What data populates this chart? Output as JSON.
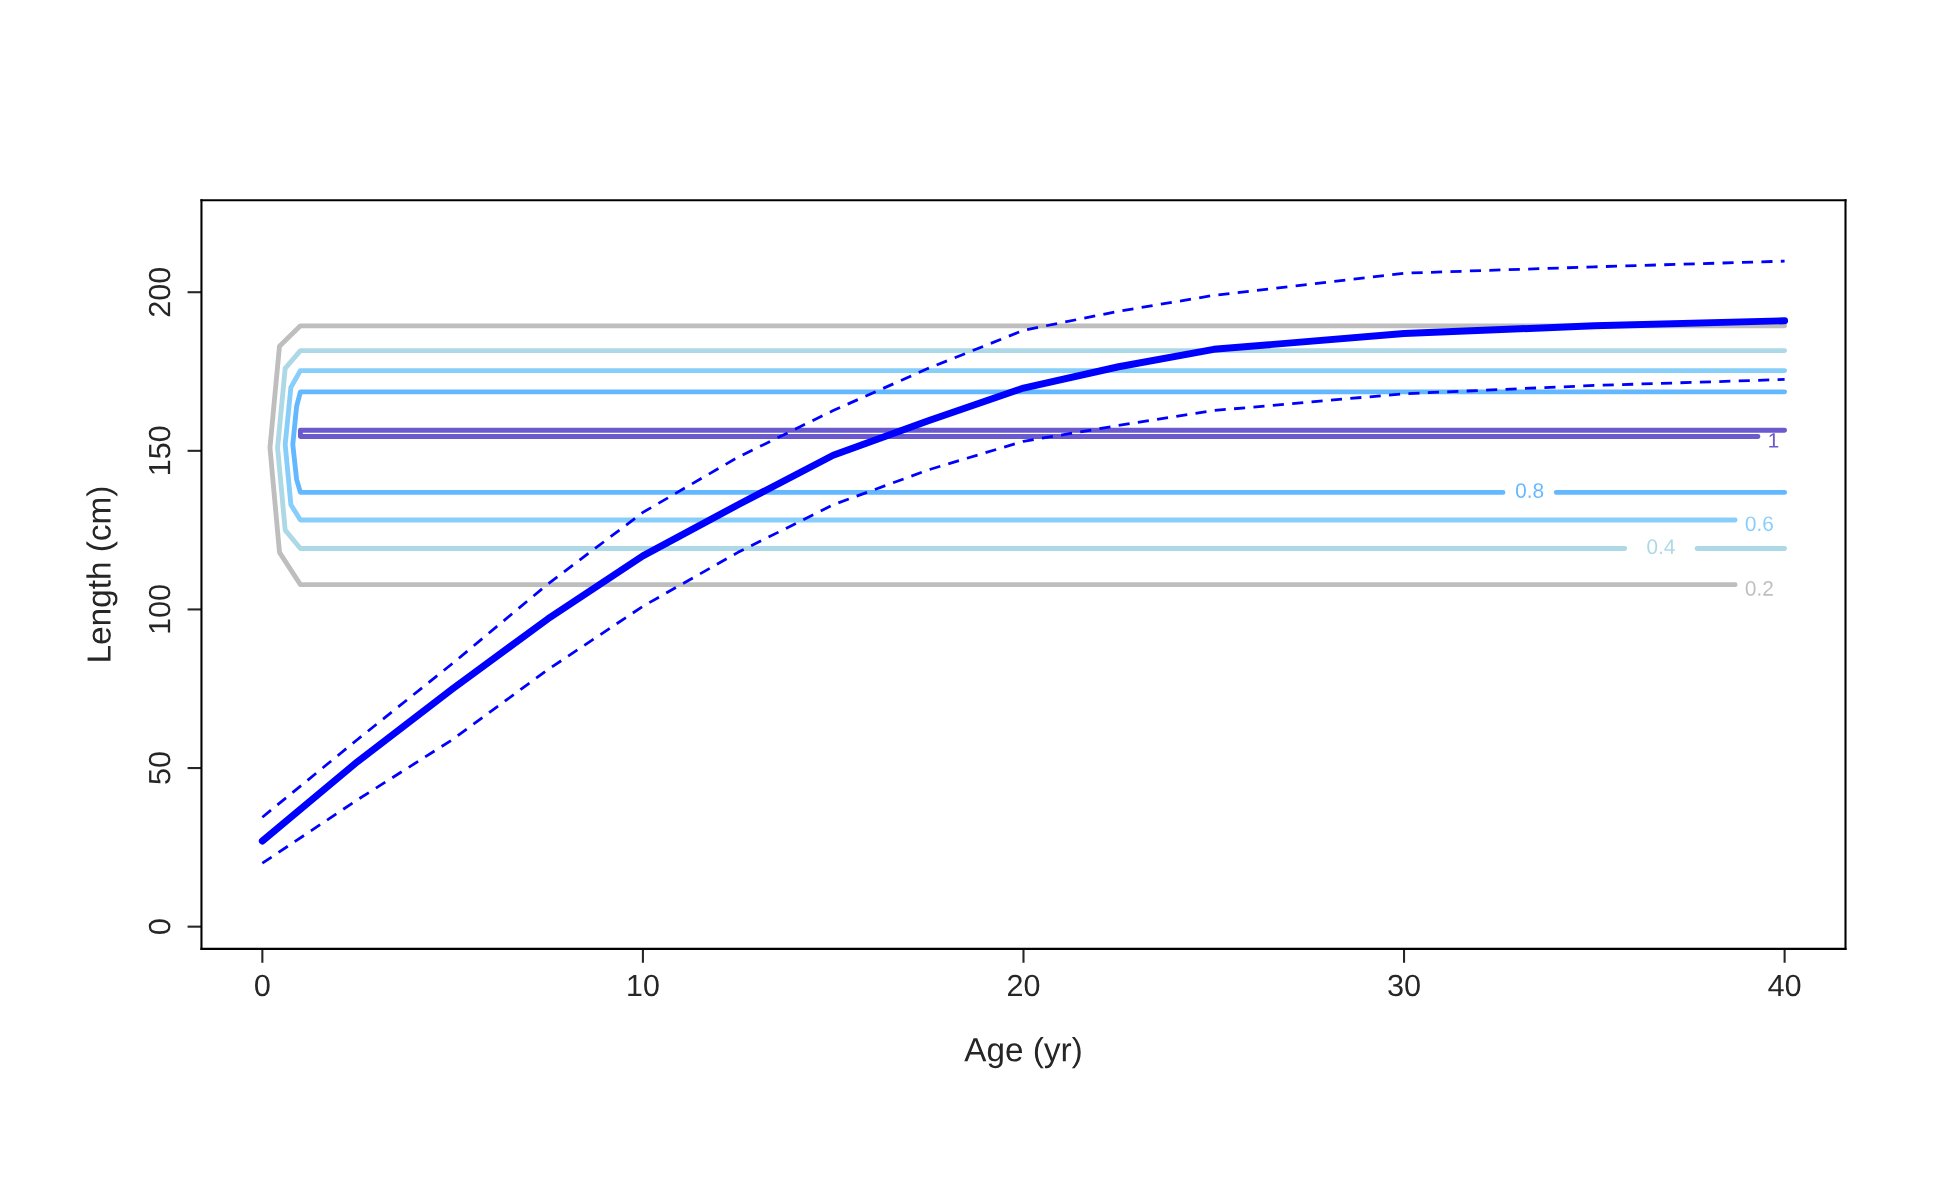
{
  "chart_data": {
    "type": "line",
    "xlabel": "Age (yr)",
    "ylabel": "Length (cm)",
    "xlim": [
      -1.6,
      41.6
    ],
    "ylim": [
      -7,
      229
    ],
    "xticks": [
      0,
      10,
      20,
      30,
      40
    ],
    "yticks": [
      0,
      50,
      100,
      150,
      200
    ],
    "grid": false,
    "legend": false,
    "marker": "none",
    "series": [
      {
        "name": "0.2",
        "color": "#bebebe",
        "line_style": "solid",
        "x": [
          40,
          1,
          0.45,
          0.2,
          0.45,
          1,
          38.7
        ],
        "values": [
          189.4,
          189.4,
          183,
          151,
          118,
          107.8,
          107.8
        ]
      },
      {
        "name": "0.4",
        "color": "#add8e6",
        "line_style": "solid",
        "x": [
          40,
          1,
          0.6,
          0.4,
          0.6,
          1,
          35.8,
          null,
          37.7,
          40
        ],
        "values": [
          181.6,
          181.6,
          176,
          151,
          125,
          119.2,
          119.2,
          null,
          119.2,
          119.2
        ]
      },
      {
        "name": "0.6",
        "color": "#87cefa",
        "line_style": "solid",
        "x": [
          40,
          1,
          0.75,
          0.6,
          0.75,
          1,
          38.7
        ],
        "values": [
          175.3,
          175.3,
          170,
          152,
          133,
          128.2,
          128.2
        ]
      },
      {
        "name": "0.8",
        "color": "#63b8ff",
        "line_style": "solid",
        "x": [
          40,
          1,
          0.9,
          0.8,
          0.9,
          1,
          32.6,
          null,
          34.0,
          40
        ],
        "values": [
          168.6,
          168.6,
          164,
          152,
          141,
          136.9,
          136.9,
          null,
          136.9,
          136.9
        ]
      },
      {
        "name": "1",
        "color": "#6a5acd",
        "line_style": "solid",
        "x": [
          40,
          1,
          1,
          39.3
        ],
        "values": [
          156.5,
          156.5,
          154.5,
          154.5
        ]
      },
      {
        "color": "#0000ff",
        "line_style": "dashed",
        "x": [
          0,
          2.5,
          5,
          7.5,
          10,
          12.5,
          15,
          17.5,
          20,
          22.5,
          25,
          30,
          35,
          40
        ],
        "values": [
          34.5,
          59,
          83,
          108,
          130.6,
          148,
          162.7,
          176,
          188,
          194,
          199,
          206,
          208,
          209.8
        ]
      },
      {
        "color": "#0000ff",
        "line_style": "dashed",
        "x": [
          0,
          2.5,
          5,
          7.5,
          10,
          12.5,
          15,
          17.5,
          20,
          22.5,
          25,
          30,
          35,
          40
        ],
        "values": [
          20,
          40,
          59,
          81,
          101,
          118,
          133,
          144,
          153,
          158,
          162.7,
          168,
          170.6,
          172.5
        ]
      },
      {
        "color": "#0000ff",
        "line_style": "solid",
        "x": [
          0,
          2.5,
          5,
          7.5,
          10,
          12.5,
          15,
          17.5,
          20,
          22.5,
          25,
          30,
          35,
          40
        ],
        "values": [
          27,
          52,
          75,
          97,
          116.9,
          133,
          148.6,
          159.5,
          169.8,
          176.5,
          182,
          187,
          189.4,
          191
        ]
      }
    ]
  }
}
